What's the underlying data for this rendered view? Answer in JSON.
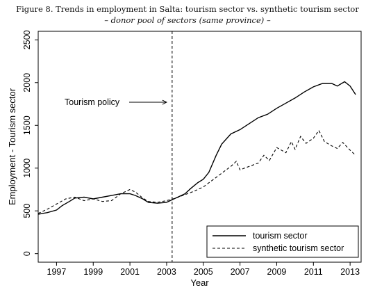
{
  "figure": {
    "title": "Figure 8. Trends in employment in Salta: tourism sector vs. synthetic tourism sector",
    "subtitle": "– donor pool of sectors (same province) –"
  },
  "chart_data": {
    "type": "line",
    "title": "Figure 8. Trends in employment in Salta: tourism sector vs. synthetic tourism sector",
    "subtitle": "– donor pool of sectors (same province) –",
    "xlabel": "Year",
    "ylabel": "Employment - Tourism sector",
    "xlim": [
      1996.0,
      2013.6
    ],
    "ylim": [
      -100,
      2600
    ],
    "x_ticks": [
      1997,
      1999,
      2001,
      2003,
      2005,
      2007,
      2009,
      2011,
      2013
    ],
    "x_tick_labels": [
      "1997",
      "1999",
      "2001",
      "2003",
      "2005",
      "2007",
      "2009",
      "2011",
      "2013"
    ],
    "y_ticks": [
      0,
      500,
      1000,
      1500,
      2000,
      2500
    ],
    "y_tick_labels": [
      "0",
      "500",
      "1000",
      "1500",
      "2000",
      "2500"
    ],
    "grid": false,
    "legend_position": "bottom-right",
    "annotations": [
      {
        "text": "Tourism policy",
        "x": 2003.3,
        "y": 1770,
        "type": "vertical-dashed-line-with-arrow"
      }
    ],
    "series": [
      {
        "name": "tourism sector",
        "style": "solid",
        "x": [
          1996.0,
          1996.5,
          1997.0,
          1997.3,
          1997.7,
          1998.0,
          1998.5,
          1999.0,
          1999.5,
          2000.0,
          2000.5,
          2001.0,
          2001.3,
          2001.7,
          2002.0,
          2002.5,
          2003.0,
          2003.5,
          2004.0,
          2004.3,
          2004.7,
          2005.0,
          2005.3,
          2005.7,
          2006.0,
          2006.5,
          2007.0,
          2007.5,
          2008.0,
          2008.5,
          2009.0,
          2009.5,
          2010.0,
          2010.5,
          2011.0,
          2011.5,
          2012.0,
          2012.3,
          2012.7,
          2013.0,
          2013.3
        ],
        "y": [
          460,
          480,
          510,
          560,
          610,
          650,
          660,
          640,
          660,
          680,
          700,
          700,
          680,
          640,
          600,
          590,
          600,
          650,
          700,
          760,
          830,
          870,
          950,
          1150,
          1280,
          1400,
          1450,
          1520,
          1590,
          1630,
          1700,
          1760,
          1820,
          1890,
          1950,
          1990,
          1990,
          1960,
          2010,
          1960,
          1860
        ]
      },
      {
        "name": "synthetic tourism sector",
        "style": "dashed",
        "x": [
          1996.0,
          1996.5,
          1997.0,
          1997.5,
          1998.0,
          1998.5,
          1999.0,
          1999.5,
          2000.0,
          2000.5,
          2001.0,
          2001.3,
          2001.7,
          2002.0,
          2002.5,
          2003.0,
          2003.5,
          2004.0,
          2004.5,
          2005.0,
          2005.5,
          2006.0,
          2006.5,
          2006.8,
          2007.0,
          2007.5,
          2008.0,
          2008.3,
          2008.6,
          2009.0,
          2009.5,
          2009.8,
          2010.0,
          2010.3,
          2010.6,
          2011.0,
          2011.3,
          2011.6,
          2012.0,
          2012.3,
          2012.6,
          2013.0,
          2013.3
        ],
        "y": [
          470,
          520,
          580,
          640,
          660,
          620,
          640,
          610,
          620,
          700,
          750,
          720,
          650,
          610,
          600,
          620,
          650,
          690,
          730,
          780,
          860,
          940,
          1020,
          1080,
          980,
          1020,
          1060,
          1150,
          1090,
          1240,
          1180,
          1310,
          1220,
          1370,
          1290,
          1350,
          1440,
          1310,
          1260,
          1230,
          1300,
          1210,
          1150
        ]
      }
    ]
  }
}
